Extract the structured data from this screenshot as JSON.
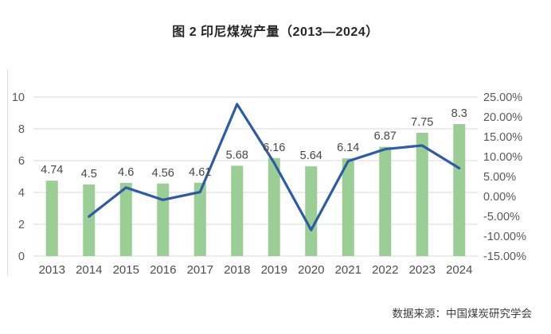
{
  "page": {
    "title": "图 2 印尼煤炭产量（2013—2024）",
    "source_note": "数据来源：中国煤炭研究学会"
  },
  "chart_data": {
    "type": "bar",
    "subtype": "bar-line-combo",
    "title": "图 2 印尼煤炭产量（2013—2024）",
    "categories": [
      "2013",
      "2014",
      "2015",
      "2016",
      "2017",
      "2018",
      "2019",
      "2020",
      "2021",
      "2022",
      "2023",
      "2024"
    ],
    "series": [
      {
        "id": "production-bars",
        "type": "bar",
        "axis": "left",
        "color": "#9bce95",
        "values": [
          4.74,
          4.5,
          4.6,
          4.56,
          4.61,
          5.68,
          6.16,
          5.64,
          6.14,
          6.87,
          7.75,
          8.3
        ],
        "labels": [
          "4.74",
          "4.5",
          "4.6",
          "4.56",
          "4.61",
          "5.68",
          "6.16",
          "5.64",
          "6.14",
          "6.87",
          "7.75",
          "8.3"
        ]
      },
      {
        "id": "growth-line",
        "type": "line",
        "axis": "right",
        "color": "#2c5ca6",
        "values": [
          null,
          -5.06,
          2.22,
          -0.87,
          1.1,
          23.21,
          8.45,
          -8.44,
          8.87,
          11.89,
          12.81,
          7.1
        ]
      }
    ],
    "left_axis": {
      "min": 0,
      "max": 10,
      "tick_values": [
        0,
        2,
        4,
        6,
        8,
        10
      ],
      "tick_labels": [
        "0",
        "2",
        "4",
        "6",
        "8",
        "10"
      ]
    },
    "right_axis": {
      "min": -15,
      "max": 25,
      "tick_values": [
        25,
        20,
        15,
        10,
        5,
        0,
        -5,
        -10,
        -15
      ],
      "tick_labels": [
        "25.00%",
        "20.00%",
        "15.00%",
        "10.00%",
        "5.00%",
        "0.00%",
        "-5.00%",
        "-10.00%",
        "-15.00%"
      ]
    },
    "grid": true,
    "legend": false,
    "colors": {
      "bar": "#9bce95",
      "line": "#2c5ca6",
      "gridline": "#d9d9d9",
      "axis_text": "#595959",
      "data_label_text": "#474747",
      "x_label_text": "#4d4d4d"
    }
  }
}
